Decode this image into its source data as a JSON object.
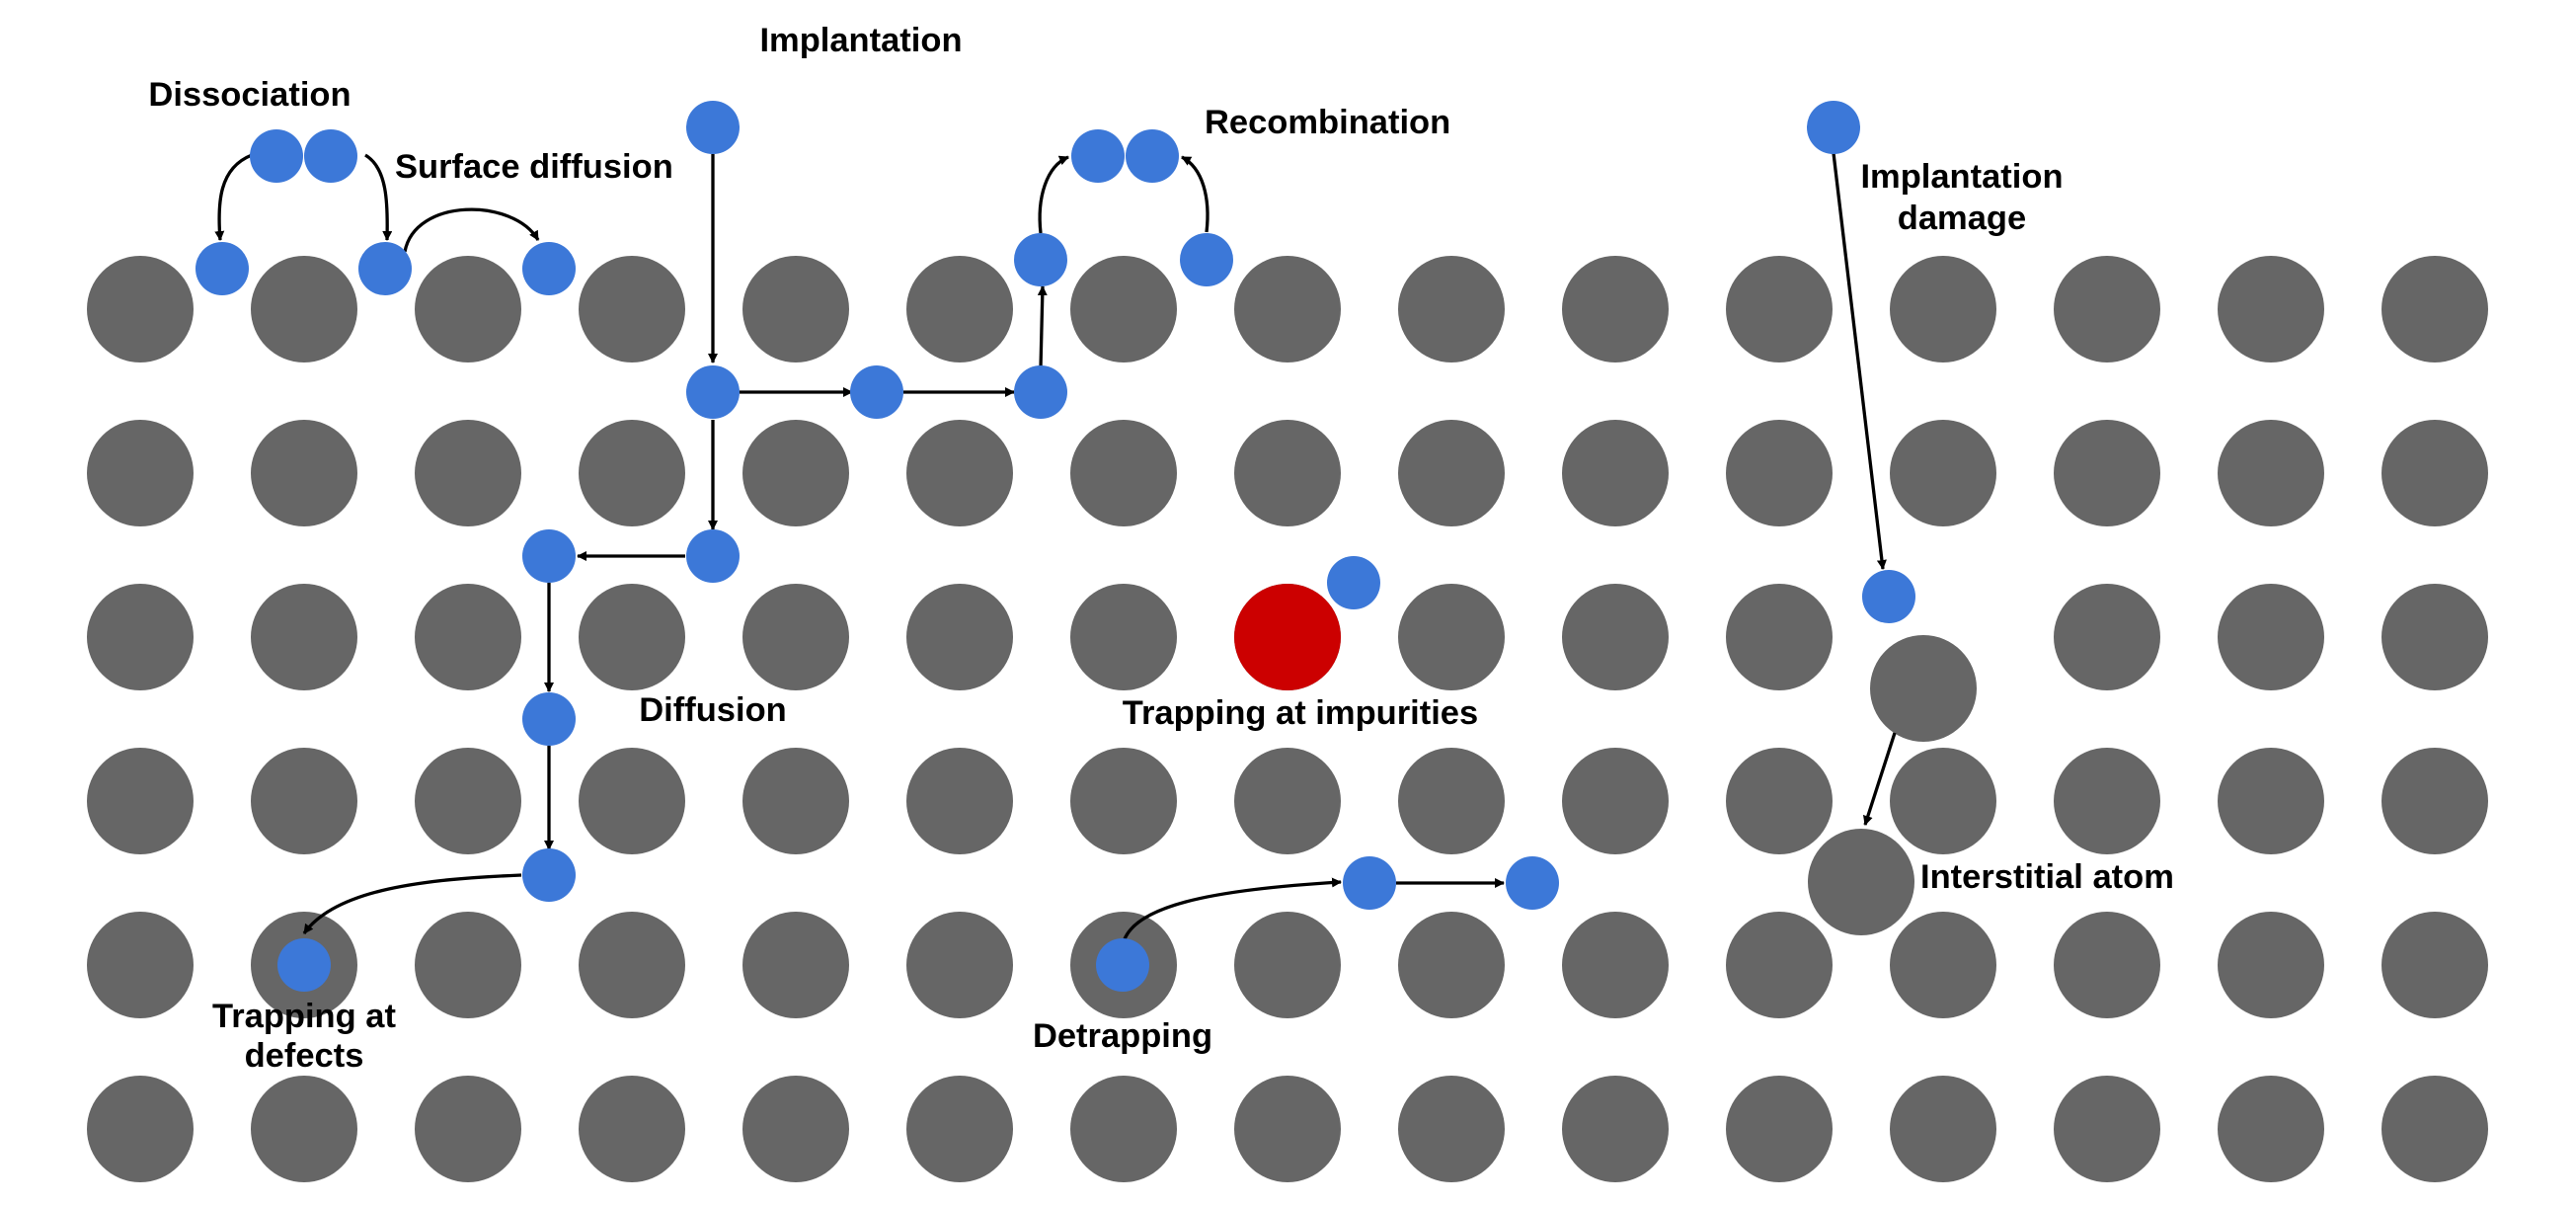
{
  "labels": {
    "implantation": "Implantation",
    "dissociation": "Dissociation",
    "surface_diffusion": "Surface diffusion",
    "recombination": "Recombination",
    "implantation_damage_line1": "Implantation",
    "implantation_damage_line2": "damage",
    "diffusion": "Diffusion",
    "trapping_impurities": "Trapping at impurities",
    "trapping_defects_line1": "Trapping at",
    "trapping_defects_line2": "defects",
    "detrapping": "Detrapping",
    "interstitial_atom": "Interstitial atom"
  },
  "colors": {
    "lattice_atom": "#666666",
    "hydrogen_atom": "#3c78d8",
    "impurity_atom": "#cc0000",
    "arrow": "#000000",
    "text": "#000000",
    "background": "#ffffff"
  },
  "lattice": {
    "columns": 15,
    "rows": 6,
    "vacant_sites": [
      [
        2,
        11
      ]
    ]
  }
}
